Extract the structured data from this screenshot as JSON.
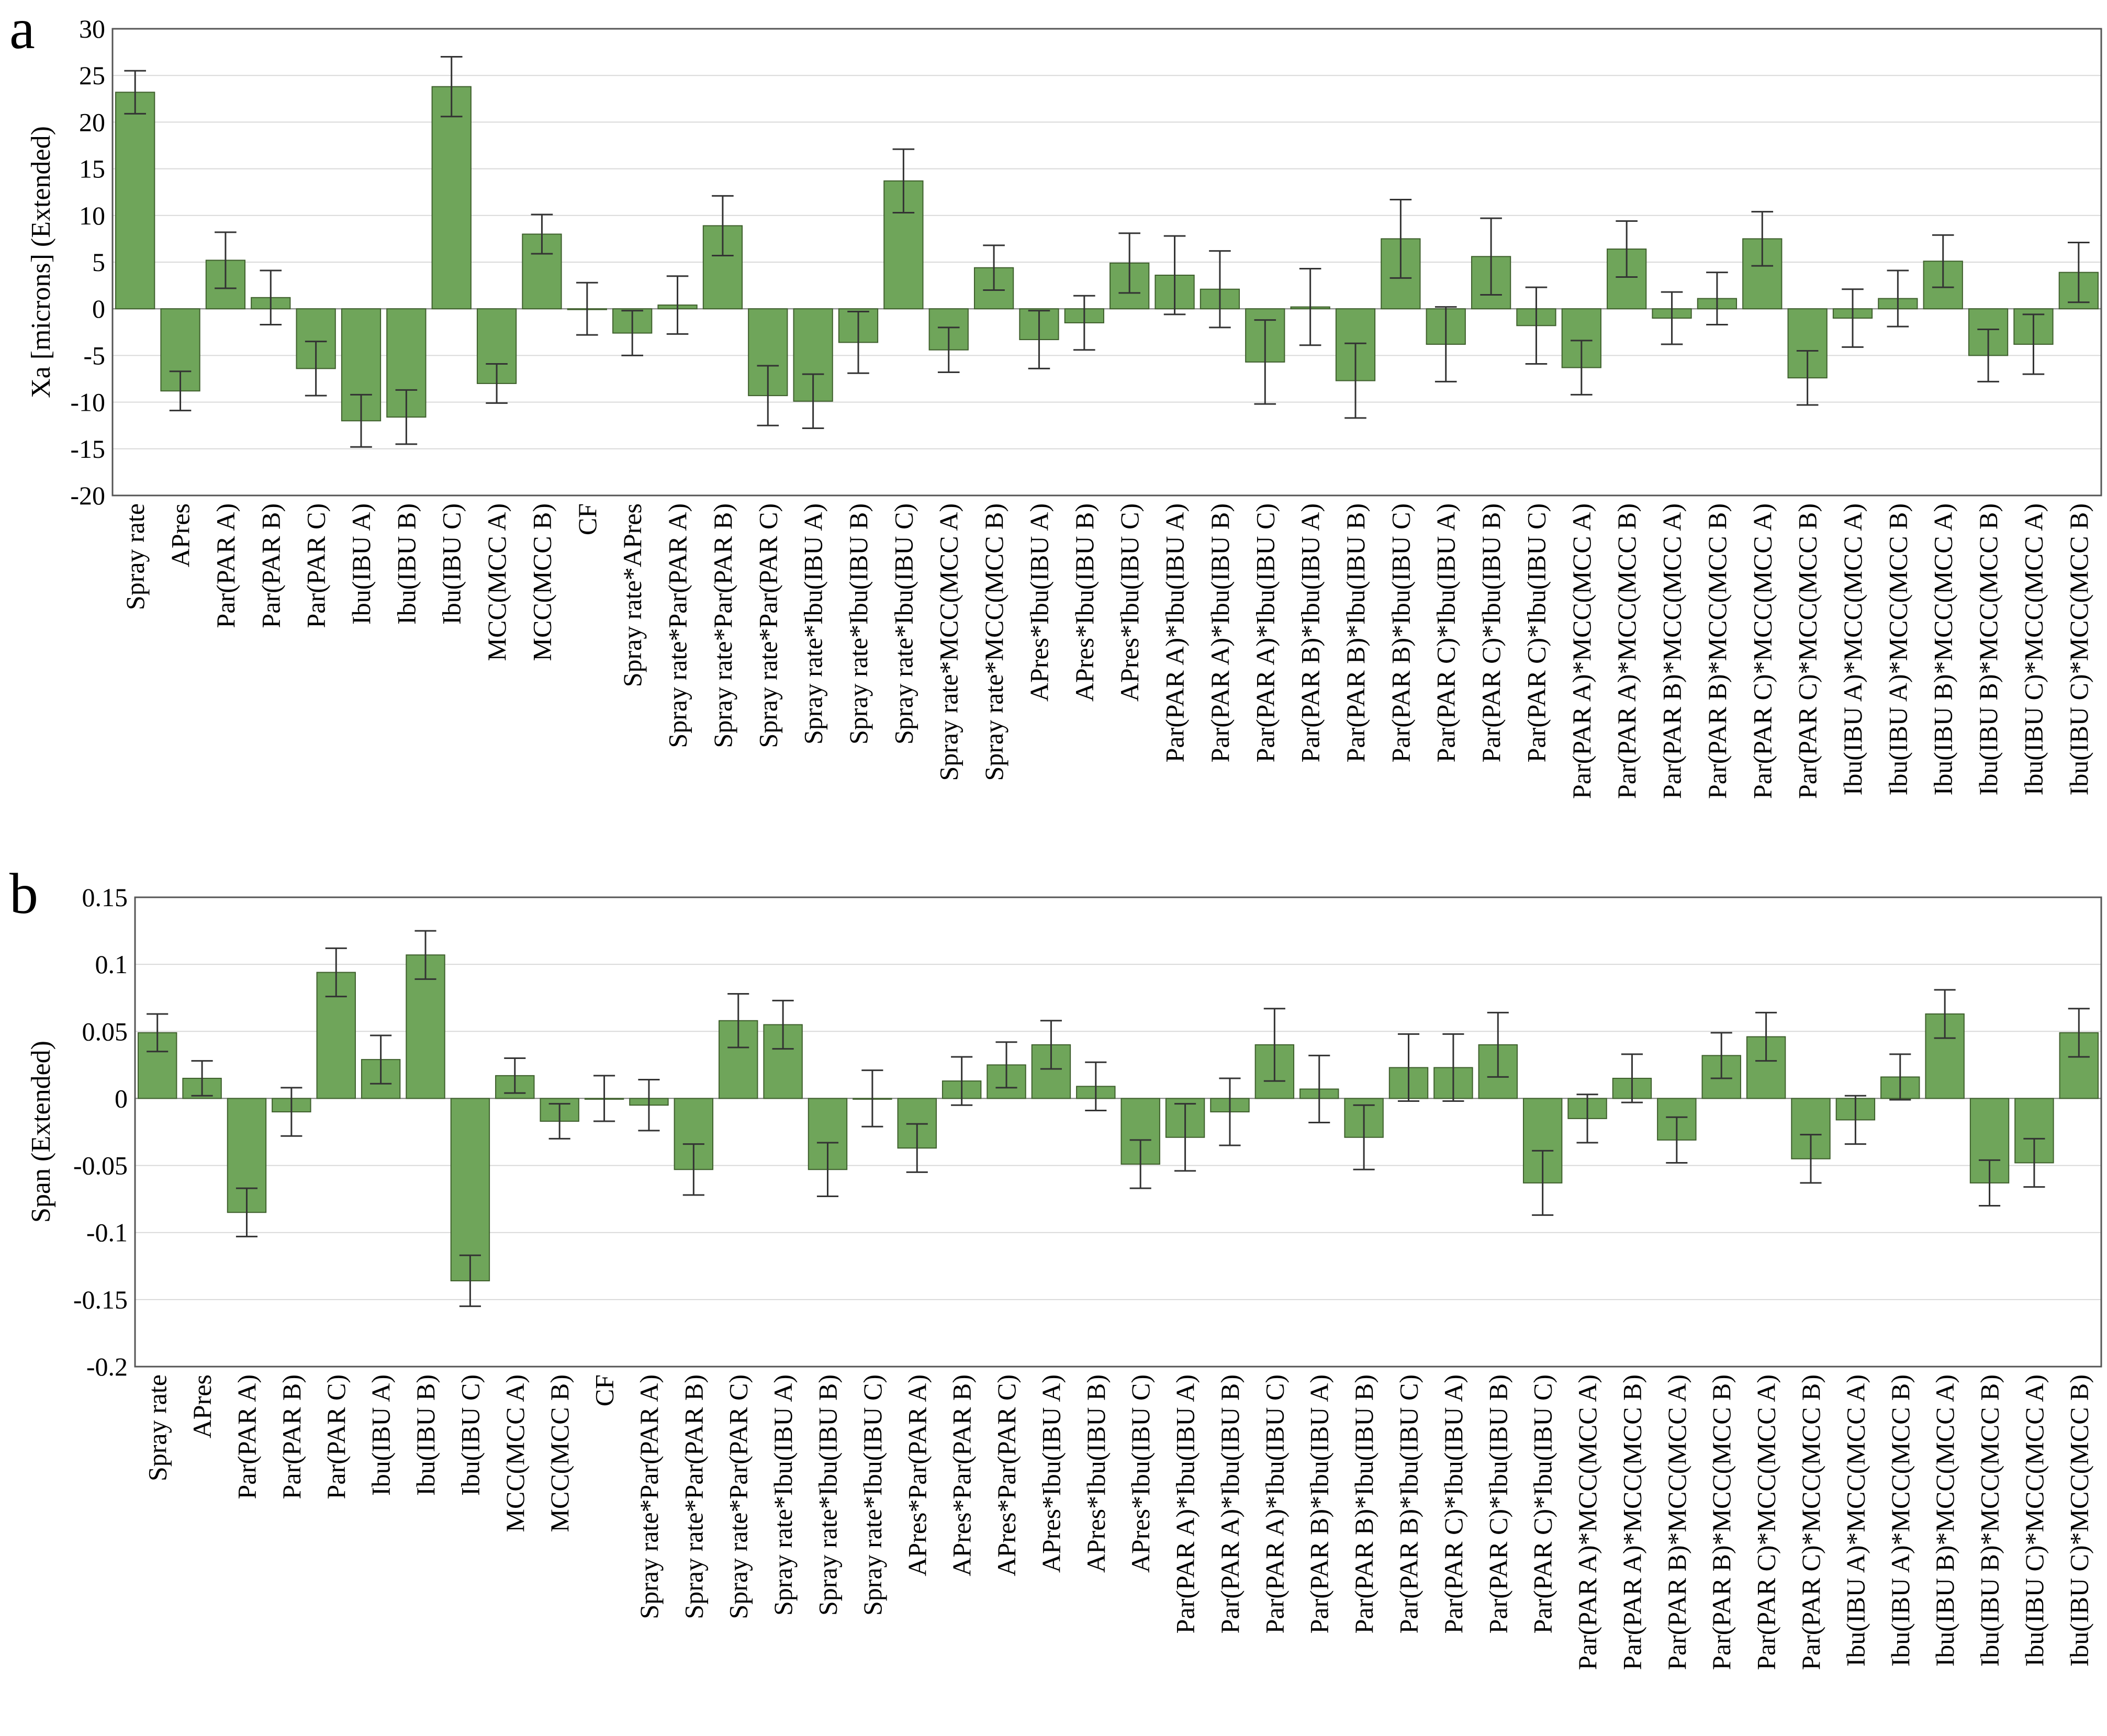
{
  "colors": {
    "bar_fill": "#6fa55a",
    "bar_stroke": "#3e5f2c"
  },
  "chart_data": [
    {
      "panel": "a",
      "type": "bar",
      "title": "",
      "xlabel": "",
      "ylabel": "Xa [microns] (Extended)",
      "ylim": [
        -20,
        30
      ],
      "yticks": [
        30,
        25,
        20,
        15,
        10,
        5,
        0,
        -5,
        -10,
        -15,
        -20
      ],
      "grid": true,
      "categories": [
        "Spray rate",
        "APres",
        "Par(PAR A)",
        "Par(PAR B)",
        "Par(PAR C)",
        "Ibu(IBU A)",
        "Ibu(IBU B)",
        "Ibu(IBU C)",
        "MCC(MCC A)",
        "MCC(MCC B)",
        "CF",
        "Spray rate*APres",
        "Spray rate*Par(PAR A)",
        "Spray rate*Par(PAR B)",
        "Spray rate*Par(PAR C)",
        "Spray rate*Ibu(IBU A)",
        "Spray rate*Ibu(IBU B)",
        "Spray rate*Ibu(IBU C)",
        "Spray rate*MCC(MCC A)",
        "Spray rate*MCC(MCC B)",
        "APres*Ibu(IBU A)",
        "APres*Ibu(IBU B)",
        "APres*Ibu(IBU C)",
        "Par(PAR A)*Ibu(IBU A)",
        "Par(PAR A)*Ibu(IBU B)",
        "Par(PAR A)*Ibu(IBU C)",
        "Par(PAR B)*Ibu(IBU A)",
        "Par(PAR B)*Ibu(IBU B)",
        "Par(PAR B)*Ibu(IBU C)",
        "Par(PAR C)*Ibu(IBU A)",
        "Par(PAR C)*Ibu(IBU B)",
        "Par(PAR C)*Ibu(IBU C)",
        "Par(PAR A)*MCC(MCC A)",
        "Par(PAR A)*MCC(MCC B)",
        "Par(PAR B)*MCC(MCC A)",
        "Par(PAR B)*MCC(MCC B)",
        "Par(PAR C)*MCC(MCC A)",
        "Par(PAR C)*MCC(MCC B)",
        "Ibu(IBU A)*MCC(MCC A)",
        "Ibu(IBU A)*MCC(MCC B)",
        "Ibu(IBU B)*MCC(MCC A)",
        "Ibu(IBU B)*MCC(MCC B)",
        "Ibu(IBU C)*MCC(MCC A)",
        "Ibu(IBU C)*MCC(MCC B)"
      ],
      "values": [
        23.2,
        -8.8,
        5.2,
        1.2,
        -6.4,
        -12.0,
        -11.6,
        23.8,
        -8.0,
        8.0,
        0.0,
        -2.6,
        0.4,
        8.9,
        -9.3,
        -9.9,
        -3.6,
        13.7,
        -4.4,
        4.4,
        -3.3,
        -1.5,
        4.9,
        3.6,
        2.1,
        -5.7,
        0.2,
        -7.7,
        7.5,
        -3.8,
        5.6,
        -1.8,
        -6.3,
        6.4,
        -1.0,
        1.1,
        7.5,
        -7.4,
        -1.0,
        1.1,
        5.1,
        -5.0,
        -3.8,
        3.9
      ],
      "errors": [
        2.3,
        2.1,
        3.0,
        2.9,
        2.9,
        2.8,
        2.9,
        3.2,
        2.1,
        2.1,
        2.8,
        2.4,
        3.1,
        3.2,
        3.2,
        2.9,
        3.3,
        3.4,
        2.4,
        2.4,
        3.1,
        2.9,
        3.2,
        4.2,
        4.1,
        4.5,
        4.1,
        4.0,
        4.2,
        4.0,
        4.1,
        4.1,
        2.9,
        3.0,
        2.8,
        2.8,
        2.9,
        2.9,
        3.1,
        3.0,
        2.8,
        2.8,
        3.2,
        3.2
      ]
    },
    {
      "panel": "b",
      "type": "bar",
      "title": "",
      "xlabel": "",
      "ylabel": "Span (Extended)",
      "ylim": [
        -0.2,
        0.15
      ],
      "yticks": [
        0.15,
        0.1,
        0.05,
        0,
        -0.05,
        -0.1,
        -0.15,
        -0.2
      ],
      "grid": true,
      "categories": [
        "Spray rate",
        "APres",
        "Par(PAR A)",
        "Par(PAR B)",
        "Par(PAR C)",
        "Ibu(IBU A)",
        "Ibu(IBU B)",
        "Ibu(IBU C)",
        "MCC(MCC A)",
        "MCC(MCC B)",
        "CF",
        "Spray rate*Par(PAR A)",
        "Spray rate*Par(PAR B)",
        "Spray rate*Par(PAR C)",
        "Spray rate*Ibu(IBU A)",
        "Spray rate*Ibu(IBU B)",
        "Spray rate*Ibu(IBU C)",
        "APres*Par(PAR A)",
        "APres*Par(PAR B)",
        "APres*Par(PAR C)",
        "APres*Ibu(IBU A)",
        "APres*Ibu(IBU B)",
        "APres*Ibu(IBU C)",
        "Par(PAR A)*Ibu(IBU A)",
        "Par(PAR A)*Ibu(IBU B)",
        "Par(PAR A)*Ibu(IBU C)",
        "Par(PAR B)*Ibu(IBU A)",
        "Par(PAR B)*Ibu(IBU B)",
        "Par(PAR B)*Ibu(IBU C)",
        "Par(PAR C)*Ibu(IBU A)",
        "Par(PAR C)*Ibu(IBU B)",
        "Par(PAR C)*Ibu(IBU C)",
        "Par(PAR A)*MCC(MCC A)",
        "Par(PAR A)*MCC(MCC B)",
        "Par(PAR B)*MCC(MCC A)",
        "Par(PAR B)*MCC(MCC B)",
        "Par(PAR C)*MCC(MCC A)",
        "Par(PAR C)*MCC(MCC B)",
        "Ibu(IBU A)*MCC(MCC A)",
        "Ibu(IBU A)*MCC(MCC B)",
        "Ibu(IBU B)*MCC(MCC A)",
        "Ibu(IBU B)*MCC(MCC B)",
        "Ibu(IBU C)*MCC(MCC A)",
        "Ibu(IBU C)*MCC(MCC B)"
      ],
      "values": [
        0.049,
        0.015,
        -0.085,
        -0.01,
        0.094,
        0.029,
        0.107,
        -0.136,
        0.017,
        -0.017,
        0.0,
        -0.005,
        -0.053,
        0.058,
        0.055,
        -0.053,
        0.0,
        -0.037,
        0.013,
        0.025,
        0.04,
        0.009,
        -0.049,
        -0.029,
        -0.01,
        0.04,
        0.007,
        -0.029,
        0.023,
        0.023,
        0.04,
        -0.063,
        -0.015,
        0.015,
        -0.031,
        0.032,
        0.046,
        -0.045,
        -0.016,
        0.016,
        0.063,
        -0.063,
        -0.048,
        0.049
      ],
      "errors": [
        0.014,
        0.013,
        0.018,
        0.018,
        0.018,
        0.018,
        0.018,
        0.019,
        0.013,
        0.013,
        0.017,
        0.019,
        0.019,
        0.02,
        0.018,
        0.02,
        0.021,
        0.018,
        0.018,
        0.017,
        0.018,
        0.018,
        0.018,
        0.025,
        0.025,
        0.027,
        0.025,
        0.024,
        0.025,
        0.025,
        0.024,
        0.024,
        0.018,
        0.018,
        0.017,
        0.017,
        0.018,
        0.018,
        0.018,
        0.017,
        0.018,
        0.017,
        0.018,
        0.018
      ]
    }
  ]
}
